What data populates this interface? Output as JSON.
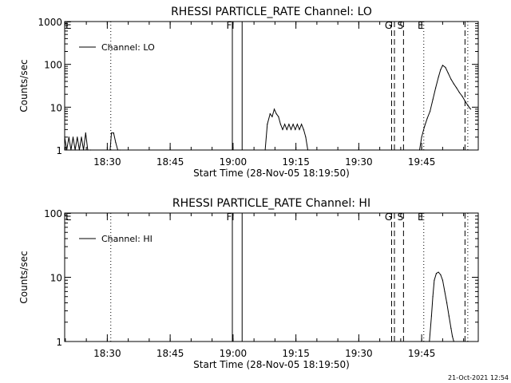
{
  "timestamp": "21-Oct-2021 12:54",
  "chart_data": [
    {
      "type": "line",
      "title": "RHESSI PARTICLE_RATE Channel: LO",
      "xlabel": "Start Time (28-Nov-05 18:19:50)",
      "ylabel": "Counts/sec",
      "yscale": "log",
      "ylim": [
        1,
        1000
      ],
      "xlim": [
        "18:19:50",
        "19:58:30"
      ],
      "xticks": [
        "18:30",
        "18:45",
        "19:00",
        "19:15",
        "19:30",
        "19:45"
      ],
      "yticks": [
        "1",
        "10",
        "100",
        "1000"
      ],
      "legend": {
        "position": "top-left"
      },
      "series": [
        {
          "name": "Channel: LO",
          "x": [
            "18:19:50",
            "18:20:20",
            "18:20:50",
            "18:21:20",
            "18:21:50",
            "18:22:20",
            "18:22:50",
            "18:23:20",
            "18:23:50",
            "18:24:20",
            "18:24:50",
            "18:25:20",
            "18:26:00",
            "18:30:40",
            "18:31:00",
            "18:31:30",
            "18:32:00",
            "18:32:30",
            "18:33:00",
            "19:07:40",
            "19:08:10",
            "19:08:50",
            "19:09:20",
            "19:09:50",
            "19:10:20",
            "19:10:50",
            "19:11:20",
            "19:11:50",
            "19:12:20",
            "19:12:50",
            "19:13:20",
            "19:13:50",
            "19:14:20",
            "19:14:50",
            "19:15:20",
            "19:15:50",
            "19:16:20",
            "19:16:50",
            "19:17:20",
            "19:17:50",
            "19:18:10",
            "19:44:30",
            "19:45:00",
            "19:45:40",
            "19:46:20",
            "19:47:00",
            "19:47:40",
            "19:48:20",
            "19:49:00",
            "19:49:30",
            "19:50:00",
            "19:50:40",
            "19:51:20",
            "19:52:00",
            "19:52:40",
            "19:53:20",
            "19:54:00",
            "19:54:40",
            "19:55:20",
            "19:56:00",
            "19:56:40"
          ],
          "values": [
            2,
            1,
            2,
            1,
            2,
            1,
            2,
            1,
            2,
            1,
            2.5,
            1,
            1,
            1,
            2.5,
            2.5,
            1.5,
            1,
            1,
            1,
            4,
            7,
            6,
            9,
            7,
            6,
            4,
            3,
            4,
            3,
            4,
            3,
            4,
            3,
            4,
            3,
            4,
            3,
            2,
            1,
            1,
            1,
            2,
            3.5,
            5.5,
            8,
            15,
            28,
            50,
            75,
            95,
            85,
            62,
            45,
            35,
            28,
            22,
            18,
            14,
            11,
            9
          ]
        }
      ],
      "event_lines": [
        {
          "x": "18:30:50",
          "style": "dotted",
          "label": ""
        },
        {
          "x": "18:59:50",
          "style": "solid",
          "label": "F"
        },
        {
          "x": "19:02:10",
          "style": "solid",
          "label": ""
        },
        {
          "x": "19:37:50",
          "style": "dashed",
          "label": "G"
        },
        {
          "x": "19:38:30",
          "style": "dashed",
          "label": ""
        },
        {
          "x": "19:40:40",
          "style": "dashed",
          "label": "S"
        },
        {
          "x": "19:45:30",
          "style": "dotted",
          "label": "E"
        },
        {
          "x": "19:55:20",
          "style": "dashed",
          "label": ""
        },
        {
          "x": "19:56:00",
          "style": "dotted",
          "label": ""
        }
      ],
      "corner_label": "E"
    },
    {
      "type": "line",
      "title": "RHESSI PARTICLE_RATE Channel: HI",
      "xlabel": "Start Time (28-Nov-05 18:19:50)",
      "ylabel": "Counts/sec",
      "yscale": "log",
      "ylim": [
        1,
        100
      ],
      "xlim": [
        "18:19:50",
        "19:58:30"
      ],
      "xticks": [
        "18:30",
        "18:45",
        "19:00",
        "19:15",
        "19:30",
        "19:45"
      ],
      "yticks": [
        "1",
        "10",
        "100"
      ],
      "legend": {
        "position": "top-left"
      },
      "series": [
        {
          "name": "Channel: HI",
          "x": [
            "19:46:50",
            "19:47:20",
            "19:47:40",
            "19:48:00",
            "19:48:30",
            "19:49:00",
            "19:49:30",
            "19:50:00",
            "19:50:30",
            "19:51:00",
            "19:51:30",
            "19:52:00",
            "19:52:20",
            "19:52:40"
          ],
          "values": [
            1,
            2.5,
            5,
            9,
            11.5,
            12,
            11,
            9,
            6,
            4,
            2.5,
            1.6,
            1.2,
            1
          ]
        }
      ],
      "event_lines": [
        {
          "x": "18:30:50",
          "style": "dotted",
          "label": ""
        },
        {
          "x": "18:59:50",
          "style": "solid",
          "label": "F"
        },
        {
          "x": "19:02:10",
          "style": "solid",
          "label": ""
        },
        {
          "x": "19:37:50",
          "style": "dashed",
          "label": "G"
        },
        {
          "x": "19:38:30",
          "style": "dashed",
          "label": ""
        },
        {
          "x": "19:40:40",
          "style": "dashed",
          "label": "S"
        },
        {
          "x": "19:45:30",
          "style": "dotted",
          "label": "E"
        },
        {
          "x": "19:55:20",
          "style": "dashed",
          "label": ""
        },
        {
          "x": "19:56:00",
          "style": "dotted",
          "label": ""
        }
      ],
      "corner_label": "E"
    }
  ]
}
